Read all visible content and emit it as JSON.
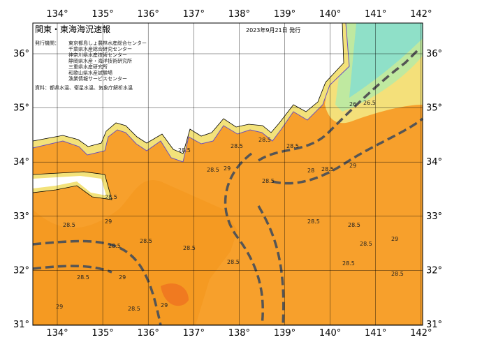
{
  "header": {
    "title": "関東・東海海況速報",
    "date": "2023年9月21日 発行"
  },
  "agencies": {
    "label": "発行機関：",
    "names": [
      "東京都島しょ農林水産総合センター",
      "千葉県水産総合研究センター",
      "神奈川県水産技術センター",
      "静岡県水産・海洋技術研究所",
      "三重県水産研究所",
      "和歌山県水産試験場",
      "漁業情報サービスセンター"
    ]
  },
  "source": "資料：都県水温、衛星水温、気象庁解析水温",
  "longitudes": [
    "134°",
    "135°",
    "136°",
    "137°",
    "138°",
    "139°",
    "140°",
    "141°",
    "142°"
  ],
  "latitudes": [
    "36°",
    "35°",
    "34°",
    "33°",
    "32°",
    "31°"
  ],
  "contour_labels": [
    "28.5",
    "28.5",
    "28.5",
    "28.5",
    "29",
    "28.5",
    "28.5",
    "28.5",
    "28.5",
    "29",
    "28.5",
    "29",
    "28.5",
    "28.5",
    "28.5",
    "29",
    "28.5",
    "28.5",
    "29",
    "28.5",
    "28.5",
    "29",
    "28",
    "28.5",
    "26.5",
    "26",
    "28.5",
    "28.5",
    "28.5",
    "29"
  ]
}
